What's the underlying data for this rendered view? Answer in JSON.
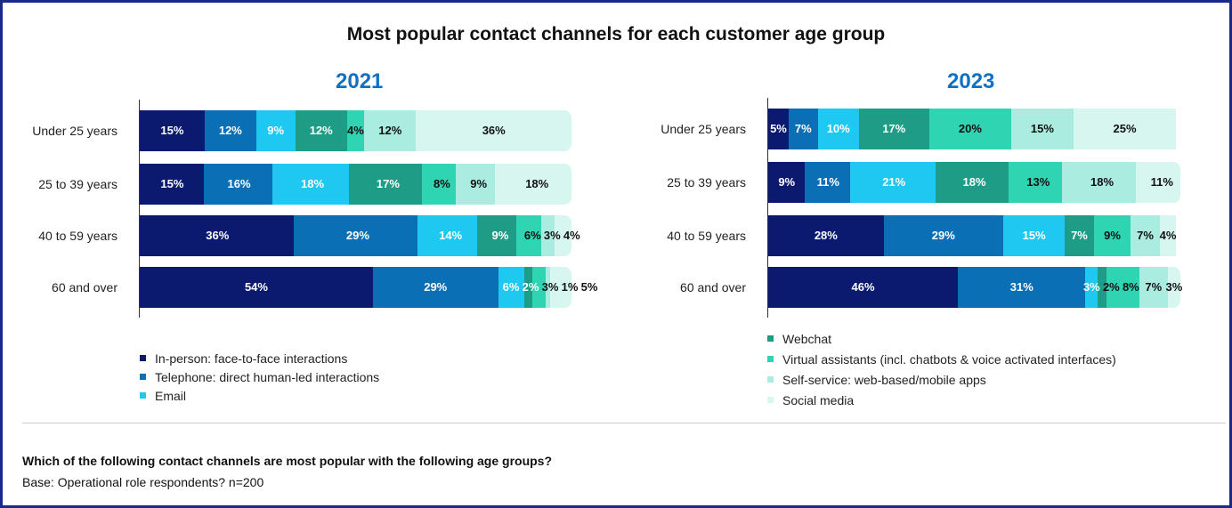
{
  "chart_data": [
    {
      "type": "bar",
      "orientation": "horizontal-stacked-100",
      "title": "2021",
      "categories": [
        "Under 25 years",
        "25 to 39 years",
        "40 to 59 years",
        "60 and over"
      ],
      "series": [
        {
          "name": "In-person: face-to-face interactions",
          "color": "#0b1a6e",
          "values": [
            15,
            15,
            36,
            54
          ]
        },
        {
          "name": "Telephone: direct human-led interactions",
          "color": "#0b6fb6",
          "values": [
            12,
            16,
            29,
            29
          ]
        },
        {
          "name": "Email",
          "color": "#1ec8f0",
          "values": [
            9,
            18,
            14,
            6
          ]
        },
        {
          "name": "Webchat",
          "color": "#1f9c86",
          "values": [
            12,
            17,
            9,
            2
          ]
        },
        {
          "name": "Virtual assistants (incl. chatbots & voice activated interfaces)",
          "color": "#2fd4b2",
          "values": [
            4,
            8,
            6,
            3
          ]
        },
        {
          "name": "Self-service: web-based/mobile apps",
          "color": "#aaece0",
          "values": [
            12,
            9,
            3,
            1
          ]
        },
        {
          "name": "Social media",
          "color": "#d8f6f0",
          "values": [
            36,
            18,
            4,
            5
          ]
        }
      ]
    },
    {
      "type": "bar",
      "orientation": "horizontal-stacked-100",
      "title": "2023",
      "categories": [
        "Under 25 years",
        "25 to 39 years",
        "40 to 59 years",
        "60 and over"
      ],
      "series": [
        {
          "name": "In-person: face-to-face interactions",
          "color": "#0b1a6e",
          "values": [
            5,
            9,
            28,
            46
          ]
        },
        {
          "name": "Telephone: direct human-led interactions",
          "color": "#0b6fb6",
          "values": [
            7,
            11,
            29,
            31
          ]
        },
        {
          "name": "Email",
          "color": "#1ec8f0",
          "values": [
            10,
            21,
            15,
            3
          ]
        },
        {
          "name": "Webchat",
          "color": "#1f9c86",
          "values": [
            17,
            18,
            7,
            2
          ]
        },
        {
          "name": "Virtual assistants (incl. chatbots & voice activated interfaces)",
          "color": "#2fd4b2",
          "values": [
            20,
            13,
            9,
            8
          ]
        },
        {
          "name": "Self-service: web-based/mobile apps",
          "color": "#aaece0",
          "values": [
            15,
            18,
            7,
            7
          ]
        },
        {
          "name": "Social media",
          "color": "#d8f6f0",
          "values": [
            25,
            11,
            4,
            3
          ]
        }
      ]
    }
  ],
  "header": {
    "title": "Most popular contact channels for each customer age group"
  },
  "footer": {
    "question": "Which of the following contact channels are most popular with the following age groups?",
    "base": "Base: Operational role respondents? n=200"
  }
}
